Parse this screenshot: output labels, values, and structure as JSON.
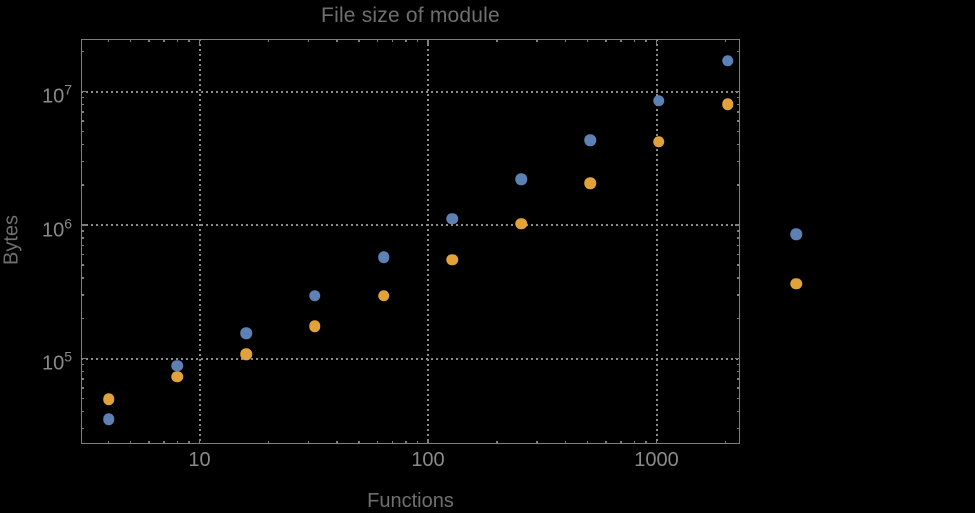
{
  "chart_data": {
    "type": "scatter",
    "title": "File size of module",
    "xlabel": "Functions",
    "ylabel": "Bytes",
    "x_scale": "log",
    "y_scale": "log",
    "xlim": [
      3,
      2320
    ],
    "ylim": [
      23000,
      24500000
    ],
    "grid": "dotted gray lines at decade values, on",
    "legend": "none",
    "x_ticks": [
      {
        "value": 10,
        "label": "10"
      },
      {
        "value": 100,
        "label": "100"
      },
      {
        "value": 1000,
        "label": "1000"
      }
    ],
    "y_ticks": [
      {
        "value": 100000,
        "base": "10",
        "exp": "5"
      },
      {
        "value": 1000000,
        "base": "10",
        "exp": "6"
      },
      {
        "value": 10000000,
        "base": "10",
        "exp": "7"
      }
    ],
    "series": [
      {
        "name": "blue",
        "color": "#5e81b5",
        "x": [
          4,
          8,
          16,
          32,
          64,
          128,
          256,
          512,
          1024,
          2048,
          4096
        ],
        "y": [
          35000,
          88000,
          155000,
          294000,
          571000,
          1110000,
          2210000,
          4330000,
          8560000,
          17000000,
          856000
        ]
      },
      {
        "name": "orange",
        "color": "#e2a23a",
        "x": [
          4,
          8,
          16,
          32,
          64,
          128,
          256,
          512,
          1024,
          2048,
          4096
        ],
        "y": [
          49700,
          72700,
          108000,
          175000,
          294000,
          547000,
          1020000,
          2050000,
          4210000,
          8060000,
          362000
        ]
      }
    ]
  },
  "colors": {
    "background": "#000000",
    "frame": "#7e7e7e",
    "gridline": "#8b8b8b",
    "tick_label": "#8a8a8a",
    "axis_label": "#6f6f6f",
    "title": "#6f6f6f",
    "series_blue": "#5e81b5",
    "series_orange": "#e2a23a"
  }
}
